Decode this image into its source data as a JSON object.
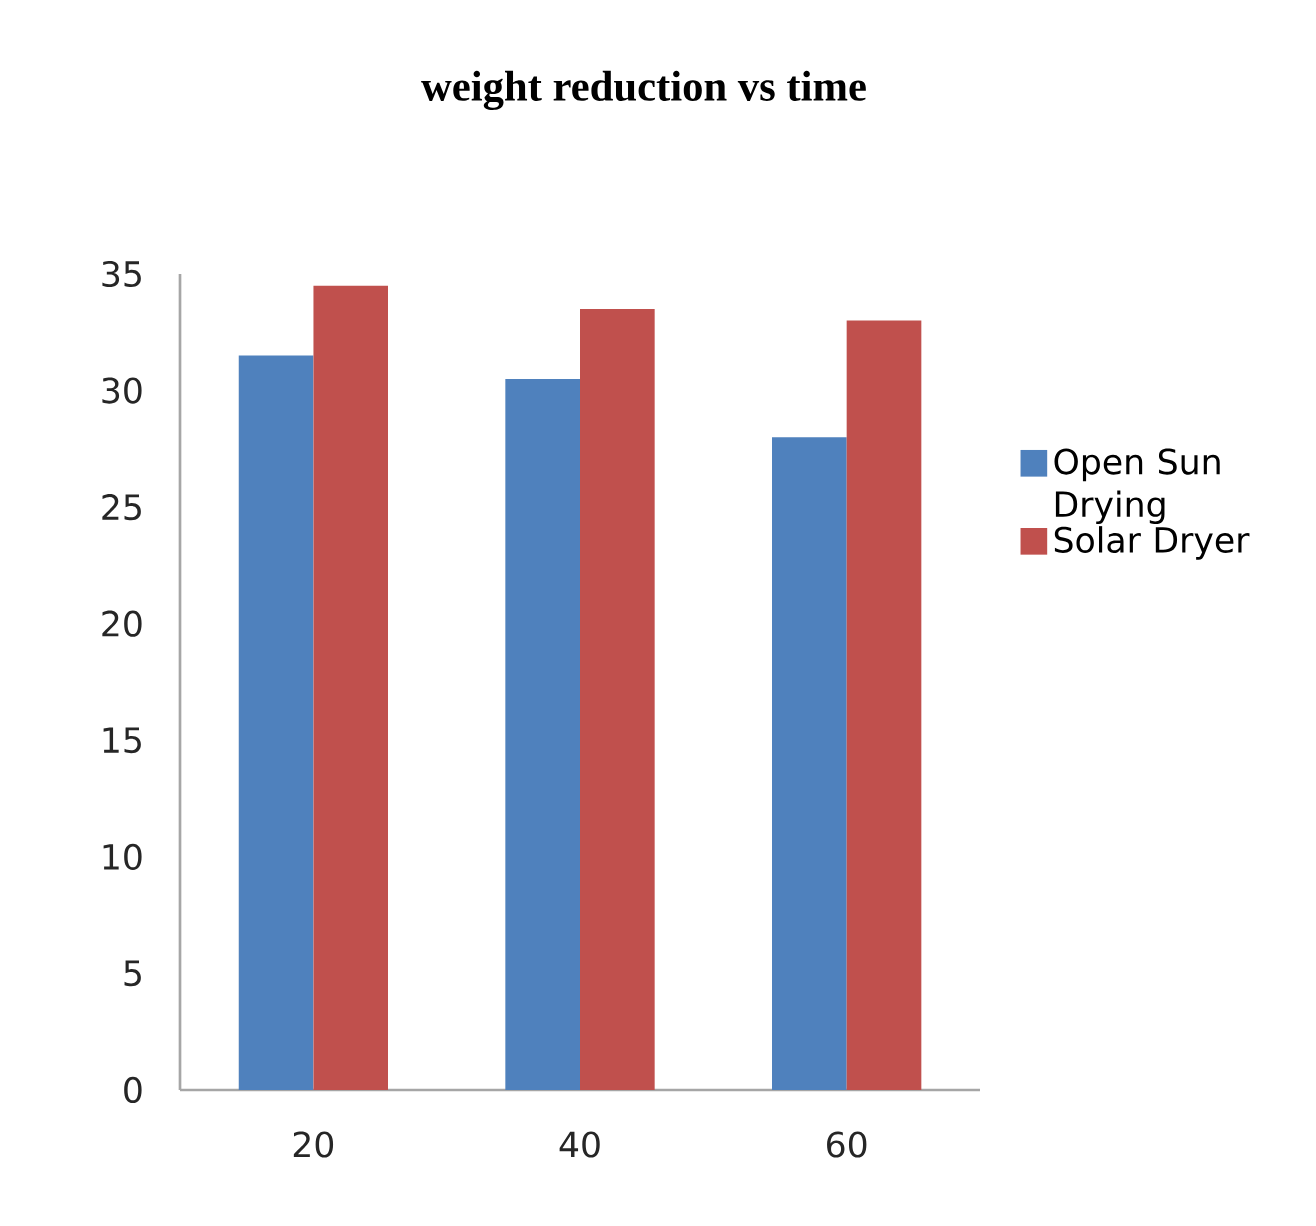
{
  "chart_data": {
    "type": "bar",
    "title": "weight reduction vs time",
    "categories": [
      "20",
      "40",
      "60"
    ],
    "series": [
      {
        "name": "Open Sun Drying",
        "color": "#4f81bd",
        "values": [
          31.5,
          30.5,
          28.0
        ]
      },
      {
        "name": "Solar Dryer",
        "color": "#c0504d",
        "values": [
          34.5,
          33.5,
          33.0
        ]
      }
    ],
    "ylim": [
      0,
      35
    ],
    "yticks": [
      0,
      5,
      10,
      15,
      20,
      25,
      30,
      35
    ],
    "grid": false,
    "legend": "right"
  }
}
